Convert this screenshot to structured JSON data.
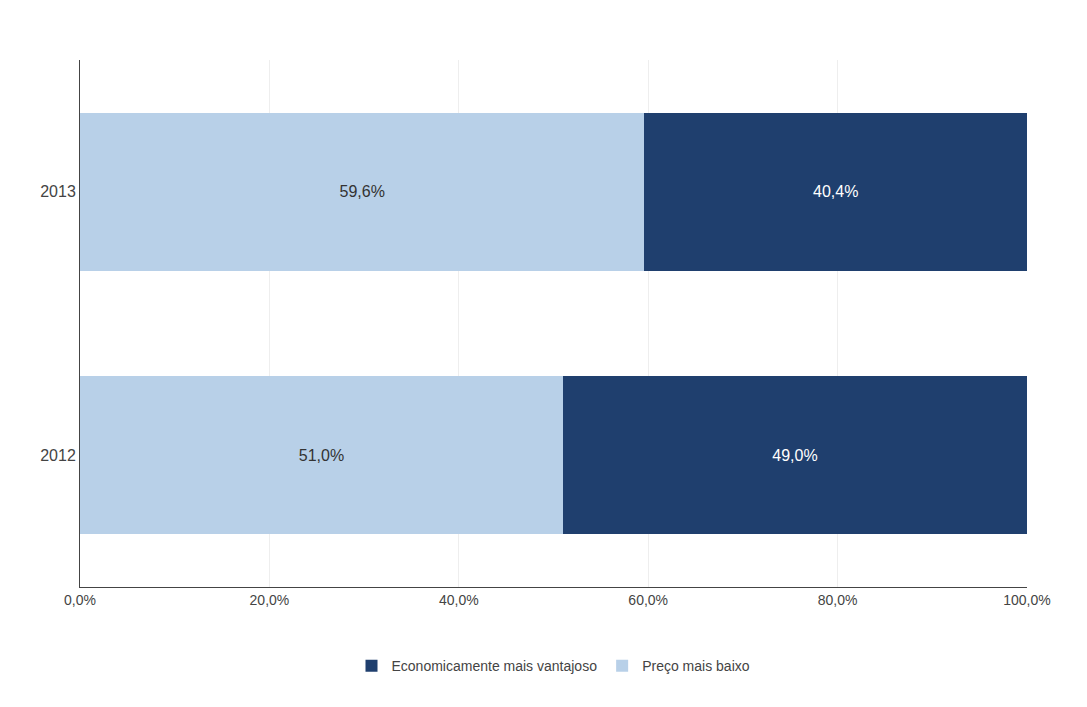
{
  "chart_data": {
    "type": "bar",
    "orientation": "horizontal",
    "stacked": true,
    "categories": [
      "2013",
      "2012"
    ],
    "series": [
      {
        "name": "Preço mais baixo",
        "color": "#b8d0e8",
        "values": [
          59.6,
          51.0
        ],
        "value_labels": [
          "59,6%",
          "51,0%"
        ]
      },
      {
        "name": "Economicamente mais vantajoso",
        "color": "#1f3f6e",
        "values": [
          40.4,
          49.0
        ],
        "value_labels": [
          "40,4%",
          "49,0%"
        ]
      }
    ],
    "xlim": [
      0,
      100
    ],
    "xticks": [
      {
        "value": 0,
        "label": "0,0%"
      },
      {
        "value": 20,
        "label": "20,0%"
      },
      {
        "value": 40,
        "label": "40,0%"
      },
      {
        "value": 60,
        "label": "60,0%"
      },
      {
        "value": 80,
        "label": "80,0%"
      },
      {
        "value": 100,
        "label": "100,0%"
      }
    ],
    "grid": true,
    "legend": "bottom",
    "data_labels": true
  }
}
